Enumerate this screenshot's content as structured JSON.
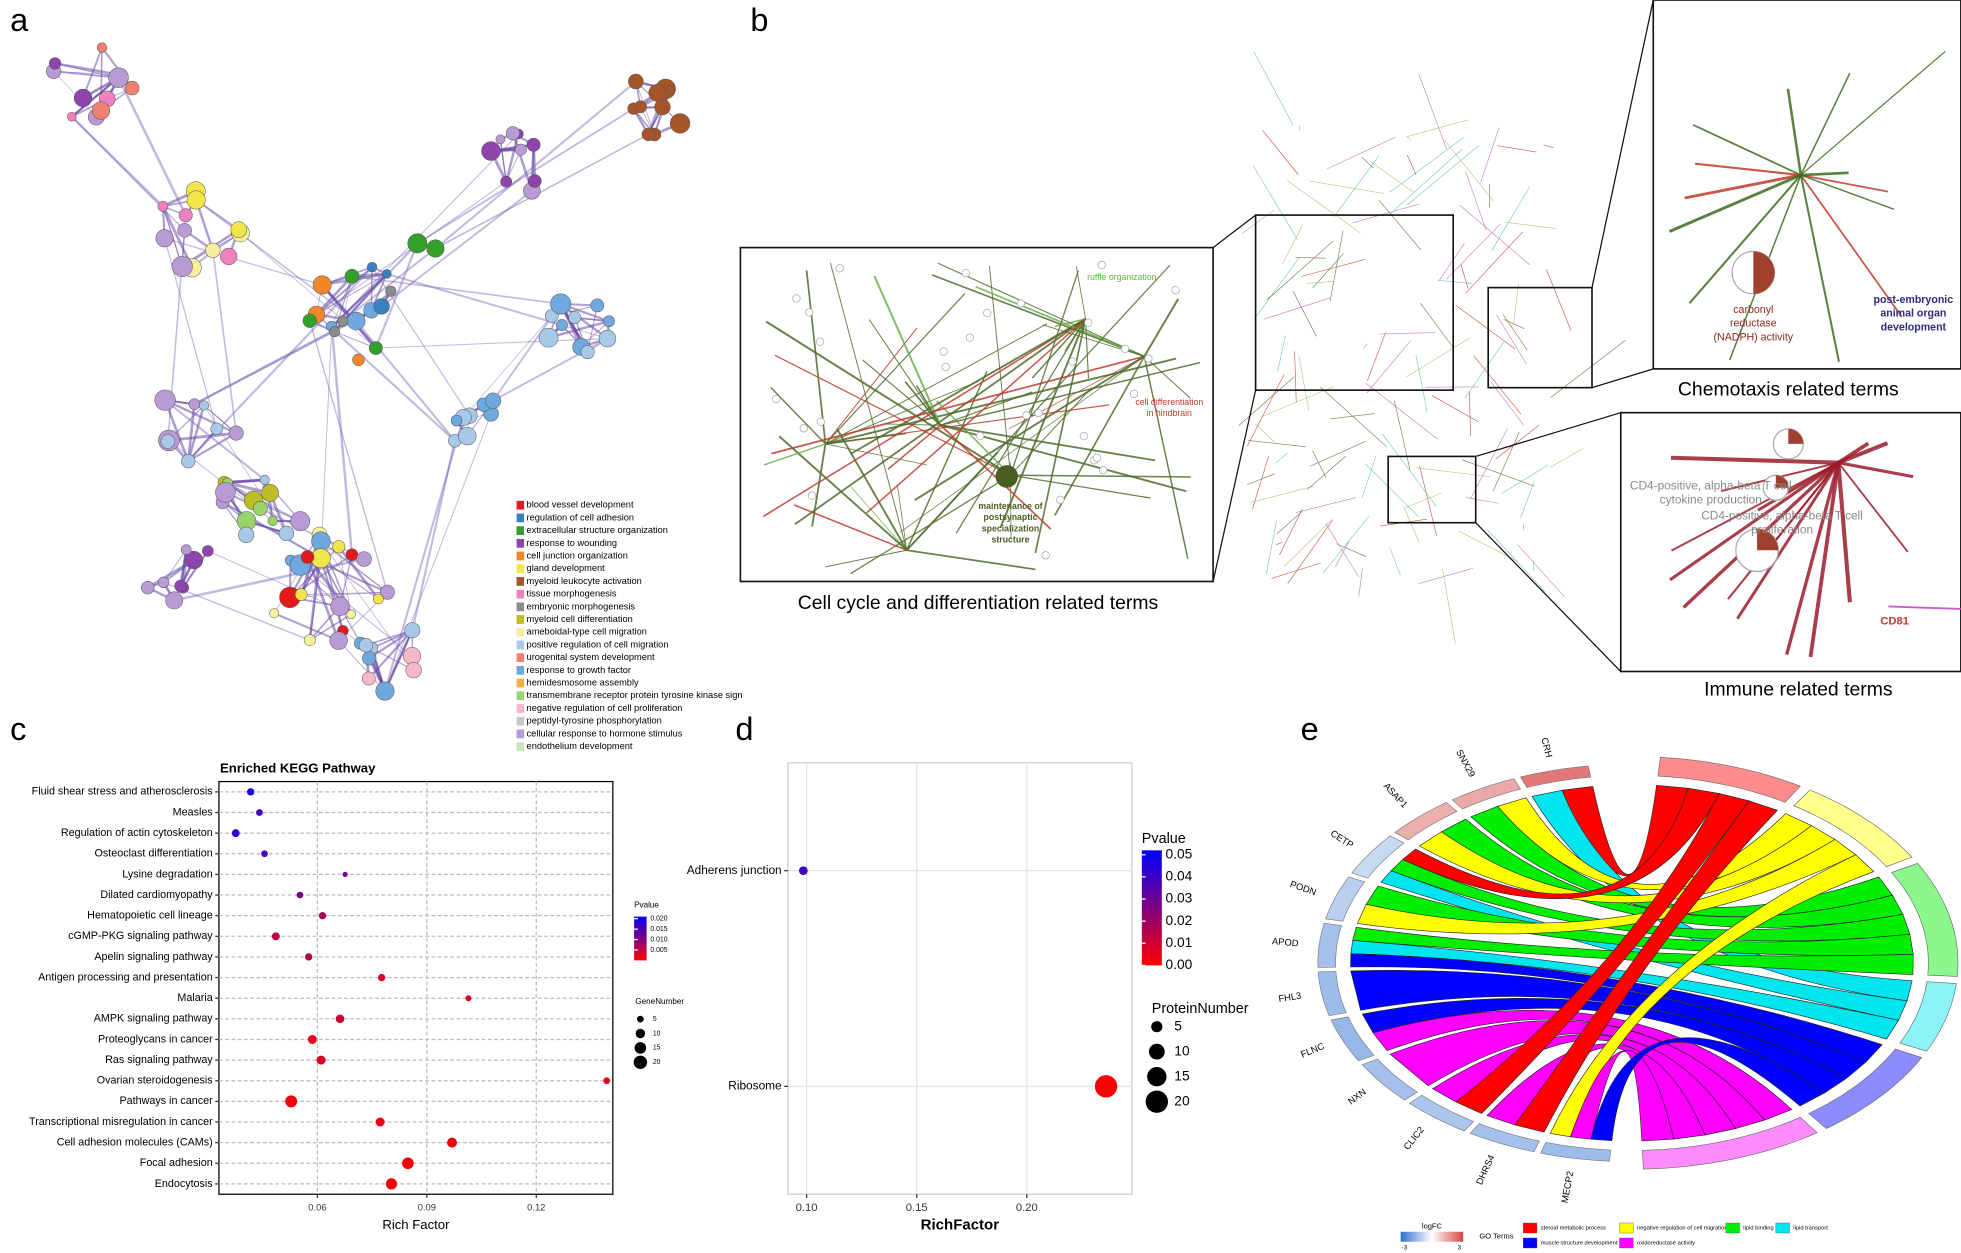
{
  "panel_labels": [
    "a",
    "b",
    "c",
    "d",
    "e"
  ],
  "network_a": {
    "legend": [
      {
        "label": "blood vessel development",
        "color": "#e31a1c"
      },
      {
        "label": "regulation of cell adhesion",
        "color": "#3a7fc0"
      },
      {
        "label": "extracellular structure organization",
        "color": "#33a02c"
      },
      {
        "label": "response to wounding",
        "color": "#8e44ad"
      },
      {
        "label": "cell junction organization",
        "color": "#f0872b"
      },
      {
        "label": "gland development",
        "color": "#f2e54a"
      },
      {
        "label": "myeloid leukocyte activation",
        "color": "#a6552a"
      },
      {
        "label": "tissue morphogenesis",
        "color": "#f080c0"
      },
      {
        "label": "embryonic morphogenesis",
        "color": "#8c8c8c"
      },
      {
        "label": "myeloid cell differentiation",
        "color": "#bcbd22"
      },
      {
        "label": "ameboidal-type cell migration",
        "color": "#f5f0a0"
      },
      {
        "label": "positive regulation of cell migration",
        "color": "#a8c8e8"
      },
      {
        "label": "urogenital system development",
        "color": "#f08070"
      },
      {
        "label": "response to growth factor",
        "color": "#6fa8dc"
      },
      {
        "label": "hemidesmosome assembly",
        "color": "#f5b040"
      },
      {
        "label": "transmembrane receptor protein tyrosine kinase sign",
        "color": "#9bd36b"
      },
      {
        "label": "negative regulation of cell proliferation",
        "color": "#f4b8c8"
      },
      {
        "label": "peptidyl-tyrosine phosphorylation",
        "color": "#c7c7c7"
      },
      {
        "label": "cellular response to hormone stimulus",
        "color": "#b89ad4"
      },
      {
        "label": "endothelium development",
        "color": "#c8e6c0"
      }
    ]
  },
  "network_b": {
    "captions": [
      "Cell cycle and differentiation related terms",
      "Chemotaxis related terms",
      "Immune related terms"
    ],
    "labels": [
      "ruffle organization",
      "cell differentiation",
      "in hindbrain",
      "maintenance of",
      "postsynaptic",
      "specialization",
      "structure",
      "carbonyl",
      "reductase",
      "(NADPH) activity",
      "post-embryonic",
      "animal organ",
      "development",
      "CD4-positive, alpha-beta T cell",
      "cytokine production",
      "CD4-positive, alpha-beta T cell",
      "proliferation",
      "CD81"
    ]
  },
  "chart_data": [
    {
      "type": "dot",
      "title": "Enriched KEGG Pathway",
      "x_label": "Rich Factor",
      "categories": [
        "Fluid shear stress and atherosclerosis",
        "Measles",
        "Regulation of actin cytoskeleton",
        "Osteoclast differentiation",
        "Lysine degradation",
        "Dilated cardiomyopathy",
        "Hematopoietic cell lineage",
        "cGMP-PKG signaling pathway",
        "Apelin signaling pathway",
        "Antigen processing and presentation",
        "Malaria",
        "AMPK signaling pathway",
        "Proteoglycans in cancer",
        "Ras signaling pathway",
        "Ovarian steroidogenesis",
        "Pathways in cancer",
        "Transcriptional misregulation in cancer",
        "Cell adhesion molecules (CAMs)",
        "Focal adhesion",
        "Endocytosis"
      ],
      "values": [
        0.0417,
        0.0441,
        0.0376,
        0.0455,
        0.0676,
        0.0552,
        0.0614,
        0.0486,
        0.0576,
        0.0776,
        0.1014,
        0.0662,
        0.0586,
        0.061,
        0.1393,
        0.0528,
        0.0772,
        0.0969,
        0.0848,
        0.0803
      ],
      "pvalue": [
        0.019,
        0.016,
        0.017,
        0.015,
        0.012,
        0.011,
        0.007,
        0.005,
        0.006,
        0.003,
        0.003,
        0.004,
        0.002,
        0.003,
        0.002,
        0.001,
        0.002,
        0.001,
        0.001,
        0.001
      ],
      "gene_number": [
        6,
        5,
        7,
        5,
        3,
        5,
        6,
        7,
        6,
        6,
        4,
        8,
        9,
        9,
        5,
        16,
        9,
        11,
        15,
        14
      ],
      "xlim": [
        0.033,
        0.141
      ],
      "xticks": [
        0.06,
        0.09,
        0.12
      ],
      "grid": true,
      "color_legend": {
        "title": "Pvalue",
        "range": [
          0,
          0.021
        ],
        "colors": [
          "#ff0000",
          "#0000ff"
        ],
        "ticks": [
          0.005,
          {
            "value": 0.01,
            "label": "0.010"
          },
          0.015,
          {
            "value": 0.02,
            "label": "0.020"
          }
        ]
      },
      "size_legend": {
        "title": "GeneNumber",
        "ticks": [
          5,
          10,
          15,
          20
        ]
      }
    },
    {
      "type": "dot",
      "x_label": "RichFactor",
      "categories": [
        "Adherens junction",
        "Ribosome"
      ],
      "values": [
        0.0985,
        0.236
      ],
      "pvalue": [
        0.04,
        0.001
      ],
      "protein_number": [
        3,
        20
      ],
      "xlim": [
        0.0915,
        0.2477
      ],
      "xticks": [
        {
          "value": 0.1,
          "label": "0.10"
        },
        0.15,
        {
          "value": 0.2,
          "label": "0.20"
        }
      ],
      "grid": true,
      "color_legend": {
        "title": "Pvalue",
        "range": [
          0,
          0.052
        ],
        "colors": [
          "#ff0000",
          "#0000ff"
        ],
        "ticks": [
          0.05,
          0.04,
          0.03,
          0.02,
          0.01,
          {
            "value": 0,
            "label": "0.00"
          }
        ]
      },
      "size_legend": {
        "title": "ProteinNumber",
        "ticks": [
          5,
          10,
          15,
          20
        ]
      }
    },
    {
      "type": "chord",
      "genes": [
        "CRH",
        "SNX29",
        "ASAP1",
        "CETP",
        "PODN",
        "APOD",
        "FHL3",
        "FLNC",
        "NXN",
        "CLIC2",
        "DHRS4",
        "MECP2"
      ],
      "logfc": [
        2.2,
        1.4,
        1.3,
        -0.8,
        -1.0,
        -1.3,
        -1.4,
        -1.5,
        -1.3,
        -1.2,
        -1.3,
        -1.4
      ],
      "logfc_legend": {
        "title": "logFC",
        "ticks": [
          -3,
          3
        ],
        "colors": [
          "#2f6fd0",
          "#ffffff",
          "#d64545"
        ]
      },
      "terms_title": "GO Terms",
      "terms": [
        {
          "name": "steroid metabolic process",
          "color": "#ff0000"
        },
        {
          "name": "negative regulation of cell migration",
          "color": "#ffff00"
        },
        {
          "name": "lipid binding",
          "color": "#00ee00"
        },
        {
          "name": "lipid transport",
          "color": "#00e5ee"
        },
        {
          "name": "muscle structure development",
          "color": "#0000ff"
        },
        {
          "name": "oxidoreductase activity",
          "color": "#ff00ff"
        }
      ]
    }
  ]
}
